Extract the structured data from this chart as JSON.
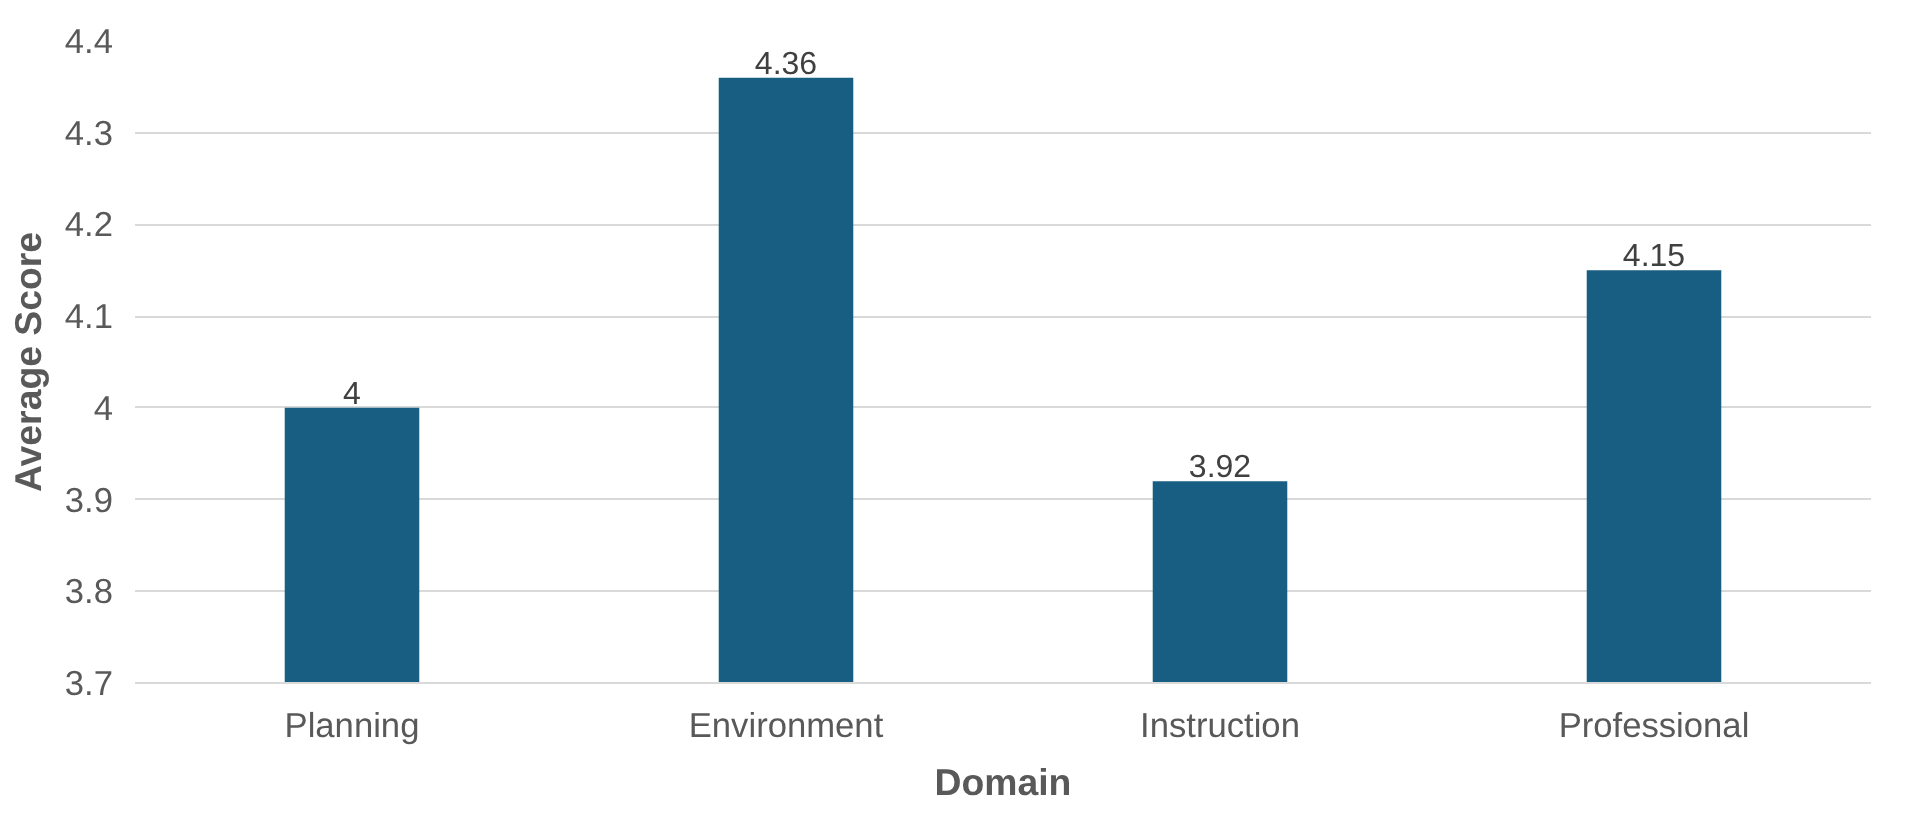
{
  "chart_data": {
    "type": "bar",
    "xlabel": "Domain",
    "ylabel": "Average Score",
    "categories": [
      "Planning",
      "Environment",
      "Instruction",
      "Professional"
    ],
    "values": [
      4,
      4.36,
      3.92,
      4.15
    ],
    "color": "#175e82",
    "ylim": [
      3.7,
      4.4
    ],
    "yticks": [
      3.7,
      3.8,
      3.9,
      4,
      4.1,
      4.2,
      4.3,
      4.4
    ],
    "grid": "y",
    "data_labels": true
  }
}
